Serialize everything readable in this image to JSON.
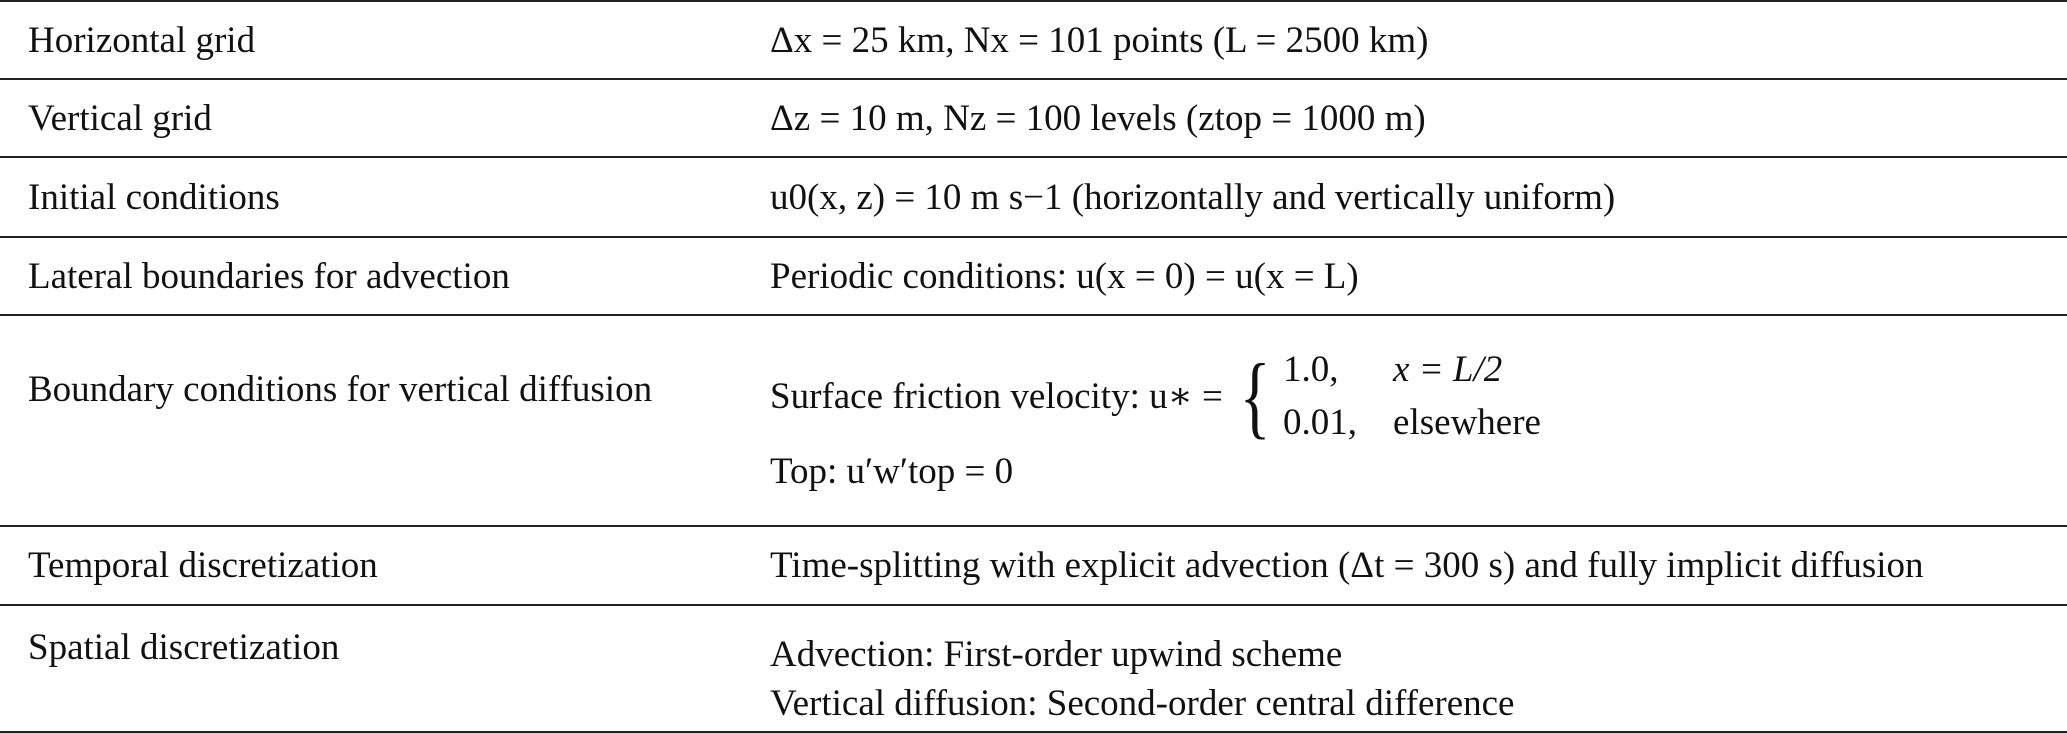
{
  "table": {
    "rows": [
      {
        "label": "Horizontal grid",
        "value": "Δx = 25 km, Nx = 101 points (L = 2500 km)"
      },
      {
        "label": "Vertical grid",
        "value": "Δz = 10 m, Nz = 100 levels (ztop = 1000 m)"
      },
      {
        "label": "Initial conditions",
        "value": "u0(x, z) = 10 m s−1 (horizontally and vertically uniform)"
      },
      {
        "label": "Lateral boundaries for advection",
        "value": "Periodic conditions: u(x = 0) = u(x = L)"
      },
      {
        "label": "Boundary conditions for vertical diffusion",
        "friction_prefix": "Surface friction velocity: u∗ =",
        "case1_value": "1.0,",
        "case1_cond": "x = L/2",
        "case2_value": "0.01,",
        "case2_cond": "elsewhere",
        "top": "Top: u′w′top = 0"
      },
      {
        "label": "Temporal discretization",
        "value": "Time-splitting with explicit advection (Δt = 300 s) and fully implicit diffusion"
      },
      {
        "label": "Spatial discretization",
        "line1": "Advection: First-order upwind scheme",
        "line2": "Vertical diffusion: Second-order central difference"
      }
    ]
  }
}
